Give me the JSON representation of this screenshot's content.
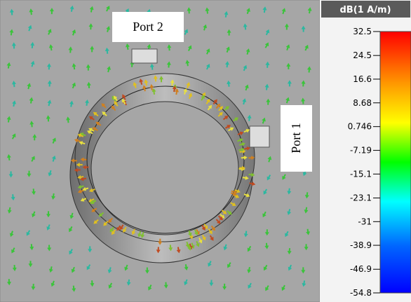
{
  "labels": {
    "port_2": "Port 2",
    "port_1": "Port 1"
  },
  "colorbar": {
    "title": "dB(1 A/m)",
    "ticks": [
      32.5,
      24.5,
      16.6,
      8.68,
      0.746,
      -7.19,
      -15.1,
      -23.1,
      -31,
      -38.9,
      -46.9,
      -54.8
    ]
  }
}
